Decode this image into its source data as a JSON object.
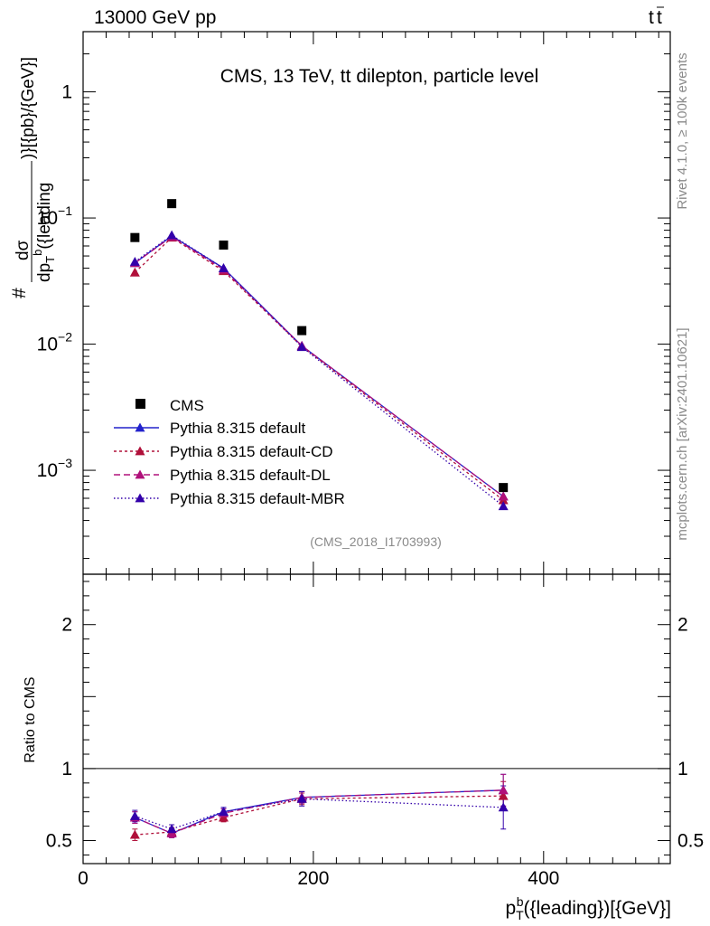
{
  "header": {
    "energy_label": "13000 GeV pp",
    "process_label_main": "t",
    "process_label_bar": "t"
  },
  "side_labels": {
    "rivet": "Rivet 4.1.0, ≥ 100k events",
    "mcplots": "mcplots.cern.ch [arXiv:2401.10621]"
  },
  "chart_data": {
    "type": "line",
    "title": "CMS, 13 TeV, tt̄ dilepton, particle level",
    "title_parts": {
      "pre": "CMS, 13 TeV, ",
      "t1": "t",
      "t2": "t",
      "post": " dilepton, particle level"
    },
    "analysis_id": "(CMS_2018_I1703993)",
    "xlabel": "p_T^b({leading})[{GeV}]",
    "xlabel_parts": {
      "p": "p",
      "sub": "T",
      "sup": "b",
      "rest": "({leading})[{GeV}]"
    },
    "ylabel_parts": {
      "hash": "#",
      "num": "dσ",
      "den_pre": "dp",
      "den_sub": "T",
      "den_sup": "b",
      "den_rest": "({leading",
      "tail": ")}[{pb}/{GeV}]"
    },
    "ratio_ylabel": "Ratio to CMS",
    "xlim": [
      0,
      510
    ],
    "ylim_main": [
      0.00015,
      3.0
    ],
    "ylim_ratio": [
      0.34,
      2.35
    ],
    "x_ticks": [
      0,
      200,
      400
    ],
    "x_tick_labels": [
      "0",
      "200",
      "400"
    ],
    "y_ticks_main": [
      1,
      0.1,
      0.01,
      0.001
    ],
    "y_tick_labels_main": [
      {
        "base": "1",
        "exp": ""
      },
      {
        "base": "10",
        "exp": "−1"
      },
      {
        "base": "10",
        "exp": "−2"
      },
      {
        "base": "10",
        "exp": "−3"
      }
    ],
    "y_ticks_ratio": [
      2,
      1,
      0.5
    ],
    "y_tick_labels_ratio": [
      "2",
      "1",
      "0.5"
    ],
    "x": [
      45,
      77,
      122,
      190,
      365
    ],
    "cms": [
      0.07,
      0.13,
      0.061,
      0.0128,
      0.00073
    ],
    "series": [
      {
        "name": "Pythia 8.315 default",
        "color": "#2222cc",
        "dash": "",
        "values": [
          0.044,
          0.072,
          0.04,
          0.0097,
          0.00062
        ],
        "ratio": [
          0.66,
          0.55,
          0.7,
          0.8,
          0.85
        ],
        "ratio_err": [
          0.04,
          0.03,
          0.03,
          0.04,
          0.11
        ]
      },
      {
        "name": "Pythia 8.315 default-CD",
        "color": "#b0103a",
        "dash": "3,3",
        "values": [
          0.037,
          0.07,
          0.038,
          0.0096,
          0.00058
        ],
        "ratio": [
          0.54,
          0.56,
          0.66,
          0.79,
          0.81
        ],
        "ratio_err": [
          0.04,
          0.03,
          0.03,
          0.04,
          0.1
        ]
      },
      {
        "name": "Pythia 8.315 default-DL",
        "color": "#b0107a",
        "dash": "7,4",
        "values": [
          0.044,
          0.071,
          0.039,
          0.0097,
          0.00062
        ],
        "ratio": [
          0.66,
          0.55,
          0.69,
          0.8,
          0.85
        ],
        "ratio_err": [
          0.04,
          0.03,
          0.03,
          0.04,
          0.11
        ]
      },
      {
        "name": "Pythia 8.315 default-MBR",
        "color": "#3300aa",
        "dash": "1.5,2.5",
        "values": [
          0.045,
          0.073,
          0.04,
          0.0095,
          0.00052
        ],
        "ratio": [
          0.67,
          0.58,
          0.7,
          0.79,
          0.73
        ],
        "ratio_err": [
          0.04,
          0.03,
          0.03,
          0.05,
          0.15
        ]
      }
    ],
    "legend": {
      "placement": "lower-left",
      "cms_label": "CMS"
    }
  }
}
